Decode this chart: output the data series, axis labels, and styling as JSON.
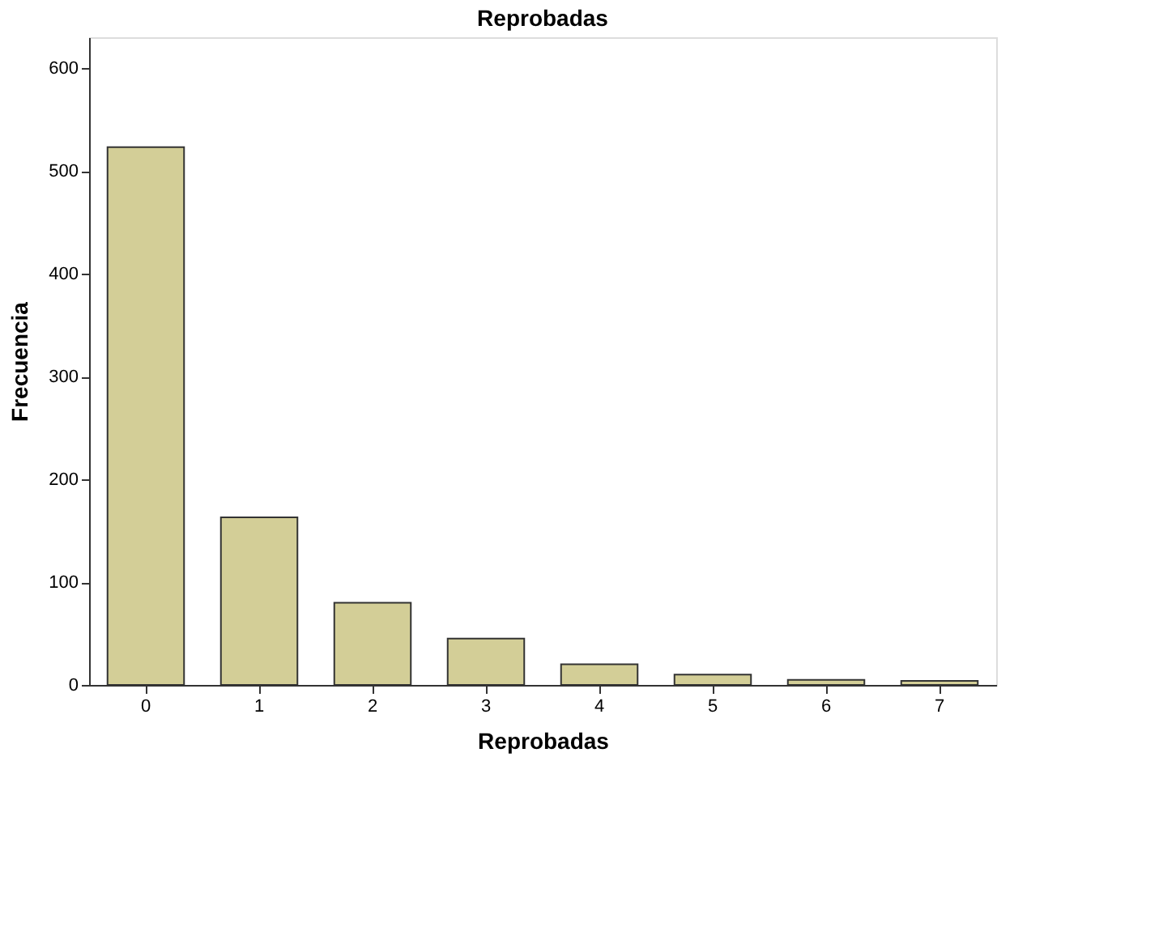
{
  "chart_data": {
    "type": "bar",
    "title": "Reprobadas",
    "xlabel": "Reprobadas",
    "ylabel": "Frecuencia",
    "categories": [
      "0",
      "1",
      "2",
      "3",
      "4",
      "5",
      "6",
      "7"
    ],
    "values": [
      523,
      163,
      80,
      45,
      20,
      10,
      5,
      4
    ],
    "color": "#d3ce97",
    "ylim": [
      0,
      630
    ],
    "yticks": [
      0,
      100,
      200,
      300,
      400,
      500,
      600
    ],
    "grid": false
  }
}
